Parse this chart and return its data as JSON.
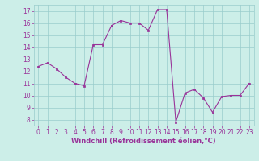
{
  "x": [
    0,
    1,
    2,
    3,
    4,
    5,
    6,
    7,
    8,
    9,
    10,
    11,
    12,
    13,
    14,
    15,
    16,
    17,
    18,
    19,
    20,
    21,
    22,
    23
  ],
  "y": [
    12.4,
    12.7,
    12.2,
    11.5,
    11.0,
    10.8,
    14.2,
    14.2,
    15.8,
    16.2,
    16.0,
    16.0,
    15.4,
    17.1,
    17.1,
    7.8,
    10.2,
    10.5,
    9.8,
    8.6,
    9.9,
    10.0,
    10.0,
    11.0
  ],
  "line_color": "#993399",
  "marker_color": "#993399",
  "bg_color": "#cceee8",
  "grid_color": "#99cccc",
  "axis_color": "#993399",
  "border_color": "#99cccc",
  "xlabel": "Windchill (Refroidissement éolien,°C)",
  "ylim": [
    7.5,
    17.5
  ],
  "xlim": [
    -0.5,
    23.5
  ],
  "yticks": [
    8,
    9,
    10,
    11,
    12,
    13,
    14,
    15,
    16,
    17
  ],
  "xticks": [
    0,
    1,
    2,
    3,
    4,
    5,
    6,
    7,
    8,
    9,
    10,
    11,
    12,
    13,
    14,
    15,
    16,
    17,
    18,
    19,
    20,
    21,
    22,
    23
  ],
  "tick_fontsize": 5.5,
  "xlabel_fontsize": 6.0
}
